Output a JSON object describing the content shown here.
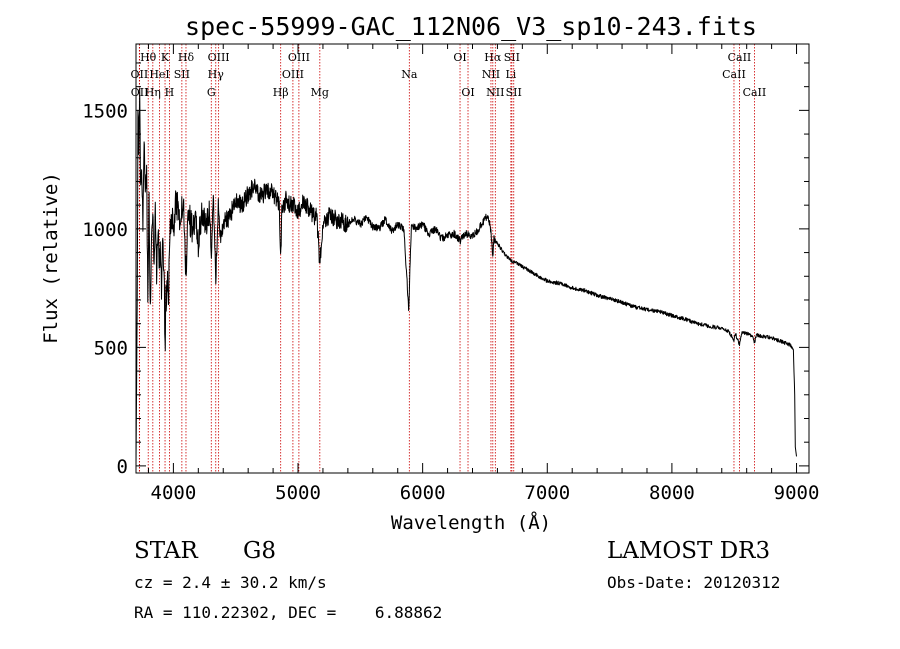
{
  "chart_data": {
    "type": "line",
    "title": "spec-55999-GAC_112N06_V3_sp10-243.fits",
    "xlabel": "Wavelength (Å)",
    "ylabel": "Flux (relative)",
    "xlim": [
      3700,
      9100
    ],
    "ylim": [
      -30,
      1780
    ],
    "xticks": [
      4000,
      5000,
      6000,
      7000,
      8000,
      9000
    ],
    "yticks": [
      0,
      500,
      1000,
      1500
    ],
    "xticks_minor_step": 200,
    "yticks_minor_step": 100,
    "grid": false,
    "line_color": "#000000",
    "line_marker_color": "#cc0000",
    "spectrum_anchors": {
      "x": [
        3700,
        3710,
        3715,
        3722,
        3730,
        3735,
        3745,
        3755,
        3765,
        3775,
        3785,
        3795,
        3805,
        3815,
        3825,
        3835,
        3845,
        3855,
        3865,
        3875,
        3885,
        3895,
        3905,
        3915,
        3925,
        3933,
        3940,
        3950,
        3960,
        3968,
        3975,
        3985,
        4000,
        4020,
        4050,
        4080,
        4101,
        4120,
        4150,
        4180,
        4200,
        4230,
        4260,
        4290,
        4305,
        4320,
        4340,
        4360,
        4380,
        4400,
        4450,
        4500,
        4550,
        4600,
        4650,
        4700,
        4750,
        4800,
        4830,
        4850,
        4861,
        4870,
        4900,
        4950,
        5000,
        5050,
        5100,
        5150,
        5172,
        5183,
        5200,
        5250,
        5300,
        5350,
        5400,
        5450,
        5500,
        5550,
        5600,
        5650,
        5700,
        5750,
        5800,
        5850,
        5889,
        5895,
        5910,
        5950,
        6000,
        6050,
        6100,
        6150,
        6200,
        6250,
        6300,
        6350,
        6400,
        6450,
        6500,
        6520,
        6540,
        6555,
        6563,
        6570,
        6600,
        6650,
        6700,
        6800,
        6900,
        7000,
        7100,
        7200,
        7300,
        7400,
        7500,
        7600,
        7700,
        7800,
        7900,
        8000,
        8100,
        8200,
        8300,
        8400,
        8450,
        8498,
        8510,
        8542,
        8560,
        8600,
        8640,
        8662,
        8680,
        8700,
        8750,
        8800,
        8850,
        8900,
        8950,
        8975,
        8985,
        8990,
        9000
      ],
      "y": [
        0,
        680,
        1500,
        1250,
        1650,
        1150,
        1300,
        1050,
        1400,
        1100,
        1250,
        700,
        1150,
        620,
        1000,
        1100,
        850,
        1050,
        780,
        1000,
        880,
        920,
        760,
        960,
        820,
        460,
        700,
        780,
        680,
        900,
        1000,
        1050,
        1000,
        1120,
        1050,
        1100,
        820,
        1080,
        1000,
        1040,
        950,
        1050,
        1000,
        1080,
        850,
        1150,
        780,
        1100,
        950,
        1020,
        1050,
        1120,
        1100,
        1150,
        1180,
        1140,
        1160,
        1150,
        1130,
        1100,
        850,
        1080,
        1120,
        1100,
        1080,
        1110,
        1070,
        1050,
        880,
        900,
        1020,
        1060,
        1040,
        1030,
        1020,
        1040,
        1020,
        1050,
        1010,
        1000,
        1040,
        990,
        1020,
        1000,
        650,
        780,
        1010,
        1000,
        1020,
        980,
        1000,
        960,
        970,
        980,
        950,
        980,
        970,
        1000,
        1040,
        1060,
        1020,
        950,
        880,
        960,
        940,
        900,
        870,
        840,
        810,
        780,
        770,
        750,
        740,
        720,
        705,
        690,
        670,
        660,
        650,
        635,
        620,
        600,
        590,
        580,
        570,
        530,
        560,
        510,
        560,
        560,
        550,
        520,
        555,
        550,
        545,
        540,
        530,
        520,
        510,
        490,
        300,
        80,
        40
      ]
    },
    "line_markers": [
      {
        "label": "Hθ",
        "x": 3798,
        "row": 1
      },
      {
        "label": "OII",
        "x": 3727,
        "row": 2
      },
      {
        "label": "OII",
        "x": 3729,
        "row": 3
      },
      {
        "label": "K",
        "x": 3933,
        "row": 1
      },
      {
        "label": "HeI",
        "x": 3889,
        "row": 2
      },
      {
        "label": "Hη",
        "x": 3835,
        "row": 3
      },
      {
        "label": "SII",
        "x": 4068,
        "row": 2
      },
      {
        "label": "H",
        "x": 3968,
        "row": 3
      },
      {
        "label": "Hδ",
        "x": 4101,
        "row": 1
      },
      {
        "label": "OIII",
        "x": 4363,
        "row": 1
      },
      {
        "label": "Hγ",
        "x": 4340,
        "row": 2
      },
      {
        "label": "G",
        "x": 4304,
        "row": 3
      },
      {
        "label": "Hβ",
        "x": 4861,
        "row": 3
      },
      {
        "label": "OIII",
        "x": 5007,
        "row": 1
      },
      {
        "label": "OIII",
        "x": 4959,
        "row": 2
      },
      {
        "label": "Mg",
        "x": 5175,
        "row": 3
      },
      {
        "label": "Na",
        "x": 5893,
        "row": 2
      },
      {
        "label": "OI",
        "x": 6300,
        "row": 1
      },
      {
        "label": "OI",
        "x": 6364,
        "row": 3
      },
      {
        "label": "Hα",
        "x": 6563,
        "row": 1
      },
      {
        "label": "SII",
        "x": 6716,
        "row": 1
      },
      {
        "label": "NII",
        "x": 6548,
        "row": 2
      },
      {
        "label": "Li",
        "x": 6708,
        "row": 2
      },
      {
        "label": "NII",
        "x": 6583,
        "row": 3
      },
      {
        "label": "SII",
        "x": 6731,
        "row": 3
      },
      {
        "label": "CaII",
        "x": 8542,
        "row": 1
      },
      {
        "label": "CaII",
        "x": 8498,
        "row": 2
      },
      {
        "label": "CaII",
        "x": 8662,
        "row": 3
      }
    ]
  },
  "info": {
    "object_class": "STAR",
    "subclass": "G8",
    "redshift_line": "cz = 2.4 ± 30.2 km/s",
    "coords_line": "RA = 110.22302, DEC =    6.88862",
    "survey": "LAMOST DR3",
    "obs_date_line": "Obs-Date: 20120312"
  }
}
